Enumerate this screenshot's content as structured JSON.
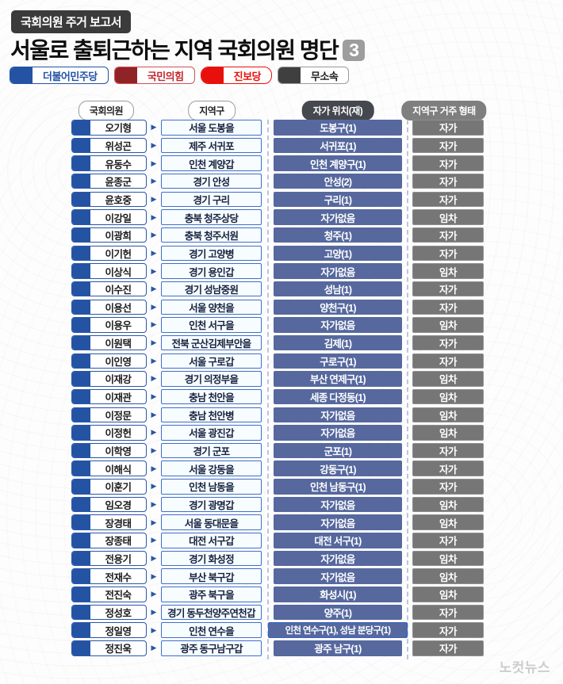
{
  "header": {
    "badge": "국회의원 주거 보고서",
    "title": "서울로 출퇴근하는 지역 국회의원 명단",
    "page_number": "3"
  },
  "legend": [
    {
      "label": "더불어민주당",
      "swatch": "#2553a4",
      "border": "#2553a4",
      "text_color": "#2553a4",
      "radius": "6px"
    },
    {
      "label": "국민의힘",
      "swatch": "#8f2326",
      "border": "#d05054",
      "text_color": "#c3272c",
      "radius": "6px"
    },
    {
      "label": "진보당",
      "swatch": "#e8100c",
      "border": "#e8100c",
      "text_color": "#e8100c",
      "radius": "10px"
    },
    {
      "label": "무소속",
      "swatch": "#3f3f3f",
      "border": "#9a9a9a",
      "text_color": "#1d1d1d",
      "radius": "6px"
    }
  ],
  "columns": [
    "국회의원",
    "지역구",
    "자가 위치(재)",
    "지역구 거주 형태"
  ],
  "colors": {
    "party_blue": "#2553a4",
    "location_box": "#56689e",
    "status_box": "#767676",
    "district_border": "#3f6fca",
    "arrow": "#2a56a8"
  },
  "rows": [
    {
      "name": "오기형",
      "party": "더불어민주당",
      "district": "서울 도봉을",
      "location": "도봉구(1)",
      "status": "자가",
      "wide": false
    },
    {
      "name": "위성곤",
      "party": "더불어민주당",
      "district": "제주 서귀포",
      "location": "서귀포(1)",
      "status": "자가",
      "wide": false
    },
    {
      "name": "유동수",
      "party": "더불어민주당",
      "district": "인천 계양갑",
      "location": "인천 계양구(1)",
      "status": "자가",
      "wide": false
    },
    {
      "name": "윤종군",
      "party": "더불어민주당",
      "district": "경기 안성",
      "location": "안성(2)",
      "status": "자가",
      "wide": false
    },
    {
      "name": "윤호중",
      "party": "더불어민주당",
      "district": "경기 구리",
      "location": "구리(1)",
      "status": "자가",
      "wide": false
    },
    {
      "name": "이강일",
      "party": "더불어민주당",
      "district": "충북 청주상당",
      "location": "자가없음",
      "status": "임차",
      "wide": false
    },
    {
      "name": "이광희",
      "party": "더불어민주당",
      "district": "충북 청주서원",
      "location": "청주(1)",
      "status": "자가",
      "wide": false
    },
    {
      "name": "이기헌",
      "party": "더불어민주당",
      "district": "경기 고양병",
      "location": "고양(1)",
      "status": "자가",
      "wide": false
    },
    {
      "name": "이상식",
      "party": "더불어민주당",
      "district": "경기 용인갑",
      "location": "자가없음",
      "status": "임차",
      "wide": false
    },
    {
      "name": "이수진",
      "party": "더불어민주당",
      "district": "경기 성남중원",
      "location": "성남(1)",
      "status": "자가",
      "wide": false
    },
    {
      "name": "이용선",
      "party": "더불어민주당",
      "district": "서울 양천을",
      "location": "양천구(1)",
      "status": "자가",
      "wide": false
    },
    {
      "name": "이용우",
      "party": "더불어민주당",
      "district": "인천 서구을",
      "location": "자가없음",
      "status": "임차",
      "wide": false
    },
    {
      "name": "이원택",
      "party": "더불어민주당",
      "district": "전북 군산김제부안을",
      "location": "김제(1)",
      "status": "자가",
      "wide": false
    },
    {
      "name": "이인영",
      "party": "더불어민주당",
      "district": "서울 구로갑",
      "location": "구로구(1)",
      "status": "자가",
      "wide": false
    },
    {
      "name": "이재강",
      "party": "더불어민주당",
      "district": "경기 의정부을",
      "location": "부산 연제구(1)",
      "status": "임차",
      "wide": false
    },
    {
      "name": "이재관",
      "party": "더불어민주당",
      "district": "충남 천안을",
      "location": "세종 다정동(1)",
      "status": "임차",
      "wide": false
    },
    {
      "name": "이정문",
      "party": "더불어민주당",
      "district": "충남 천안병",
      "location": "자가없음",
      "status": "임차",
      "wide": false
    },
    {
      "name": "이정헌",
      "party": "더불어민주당",
      "district": "서울 광진갑",
      "location": "자가없음",
      "status": "임차",
      "wide": false
    },
    {
      "name": "이학영",
      "party": "더불어민주당",
      "district": "경기 군포",
      "location": "군포(1)",
      "status": "자가",
      "wide": false
    },
    {
      "name": "이해식",
      "party": "더불어민주당",
      "district": "서울 강동을",
      "location": "강동구(1)",
      "status": "자가",
      "wide": false
    },
    {
      "name": "이훈기",
      "party": "더불어민주당",
      "district": "인천 남동을",
      "location": "인천 남동구(1)",
      "status": "자가",
      "wide": false
    },
    {
      "name": "임오경",
      "party": "더불어민주당",
      "district": "경기 광명갑",
      "location": "자가없음",
      "status": "임차",
      "wide": false
    },
    {
      "name": "장경태",
      "party": "더불어민주당",
      "district": "서울 동대문을",
      "location": "자가없음",
      "status": "임차",
      "wide": false
    },
    {
      "name": "장종태",
      "party": "더불어민주당",
      "district": "대전 서구갑",
      "location": "대전 서구(1)",
      "status": "자가",
      "wide": false
    },
    {
      "name": "전용기",
      "party": "더불어민주당",
      "district": "경기 화성정",
      "location": "자가없음",
      "status": "임차",
      "wide": false
    },
    {
      "name": "전재수",
      "party": "더불어민주당",
      "district": "부산 북구갑",
      "location": "자가없음",
      "status": "임차",
      "wide": false
    },
    {
      "name": "전진숙",
      "party": "더불어민주당",
      "district": "광주 북구을",
      "location": "화성시(1)",
      "status": "임차",
      "wide": false
    },
    {
      "name": "정성호",
      "party": "더불어민주당",
      "district": "경기 동두천양주연천갑",
      "location": "양주(1)",
      "status": "자가",
      "wide": false
    },
    {
      "name": "정일영",
      "party": "더불어민주당",
      "district": "인천 연수을",
      "location": "인천 연수구(1), 성남 분당구(1)",
      "status": "자가",
      "wide": true
    },
    {
      "name": "정진욱",
      "party": "더불어민주당",
      "district": "광주 동구남구갑",
      "location": "광주 남구(1)",
      "status": "자가",
      "wide": false
    }
  ],
  "footer": {
    "logo": "노컷뉴스"
  }
}
